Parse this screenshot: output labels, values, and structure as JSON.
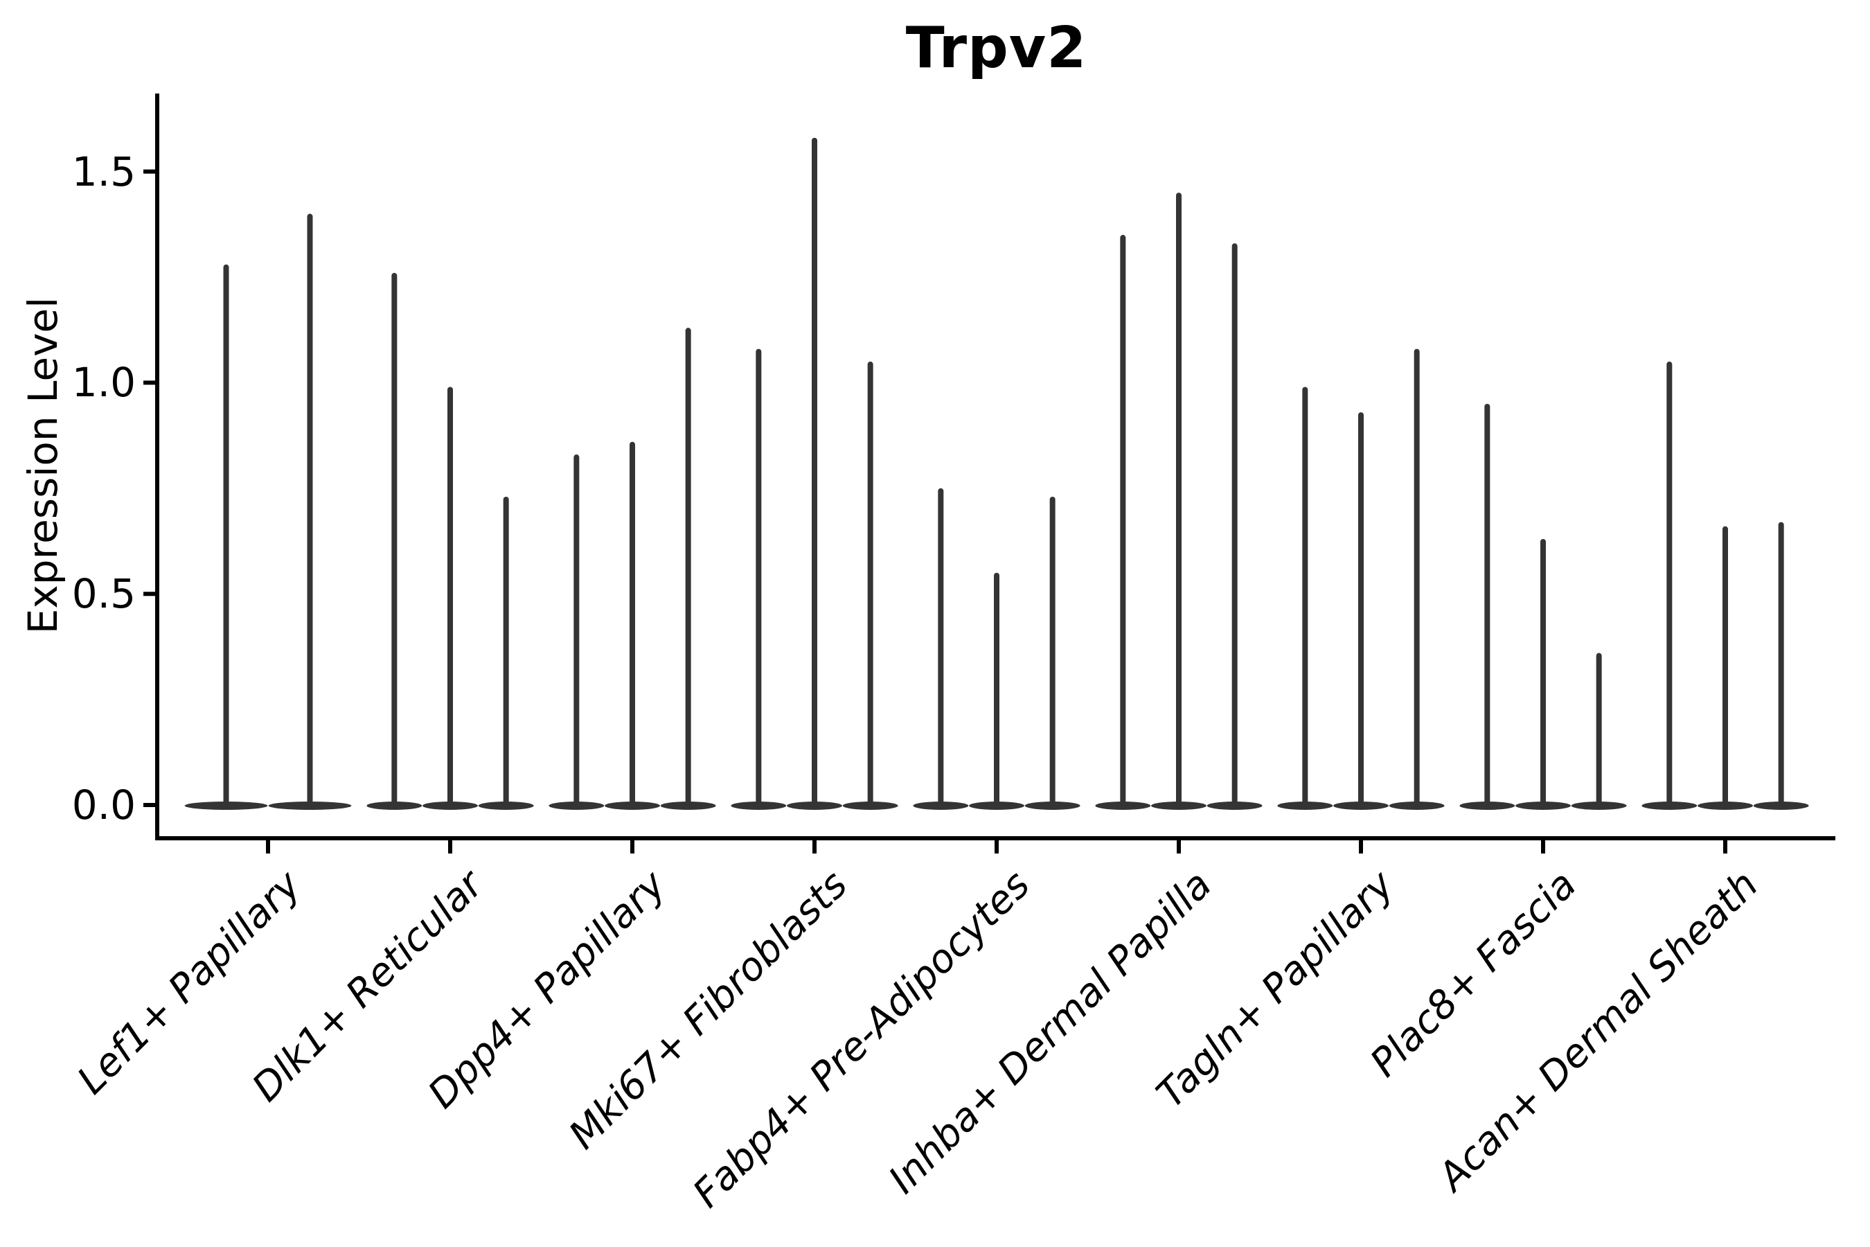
{
  "chart_data": {
    "type": "violin",
    "title": "Trpv2",
    "xlabel": "",
    "ylabel": "Expression Level",
    "ylim": [
      -0.09,
      1.69
    ],
    "yticks": [
      0.0,
      0.5,
      1.0,
      1.5
    ],
    "ytick_labels": [
      "0.0",
      "0.5",
      "1.0",
      "1.5"
    ],
    "grid": false,
    "legend": "none",
    "description": "Needle-thin violins: density concentrated at 0 with a thin spike up to each max expression value; 2-3 violins (samples) per cell-type category",
    "categories": [
      "Lef1+ Papillary",
      "Dlk1+ Reticular",
      "Dpp4+ Papillary",
      "Mki67+ Fibroblasts",
      "Fabp4+ Pre-Adipocytes",
      "Inhba+ Dermal Papilla",
      "Tagln+ Papillary",
      "Plac8+ Fascia",
      "Acan+ Dermal Sheath"
    ],
    "series": [
      {
        "name": "Lef1+ Papillary",
        "violin_max_values": [
          1.28,
          1.4
        ]
      },
      {
        "name": "Dlk1+ Reticular",
        "violin_max_values": [
          1.26,
          0.99,
          0.73
        ]
      },
      {
        "name": "Dpp4+ Papillary",
        "violin_max_values": [
          0.83,
          0.86,
          1.13
        ]
      },
      {
        "name": "Mki67+ Fibroblasts",
        "violin_max_values": [
          1.08,
          1.58,
          1.05
        ]
      },
      {
        "name": "Fabp4+ Pre-Adipocytes",
        "violin_max_values": [
          0.75,
          0.55,
          0.73
        ]
      },
      {
        "name": "Inhba+ Dermal Papilla",
        "violin_max_values": [
          1.35,
          1.45,
          1.33
        ]
      },
      {
        "name": "Tagln+ Papillary",
        "violin_max_values": [
          0.99,
          0.93,
          1.08
        ]
      },
      {
        "name": "Plac8+ Fascia",
        "violin_max_values": [
          0.95,
          0.63,
          0.36
        ]
      },
      {
        "name": "Acan+ Dermal Sheath",
        "violin_max_values": [
          1.05,
          0.66,
          0.67
        ]
      }
    ],
    "baseline_value": 0.0
  },
  "colors": {
    "violin": "#343434",
    "axis": "#000000",
    "text": "#000000",
    "background": "#ffffff"
  }
}
